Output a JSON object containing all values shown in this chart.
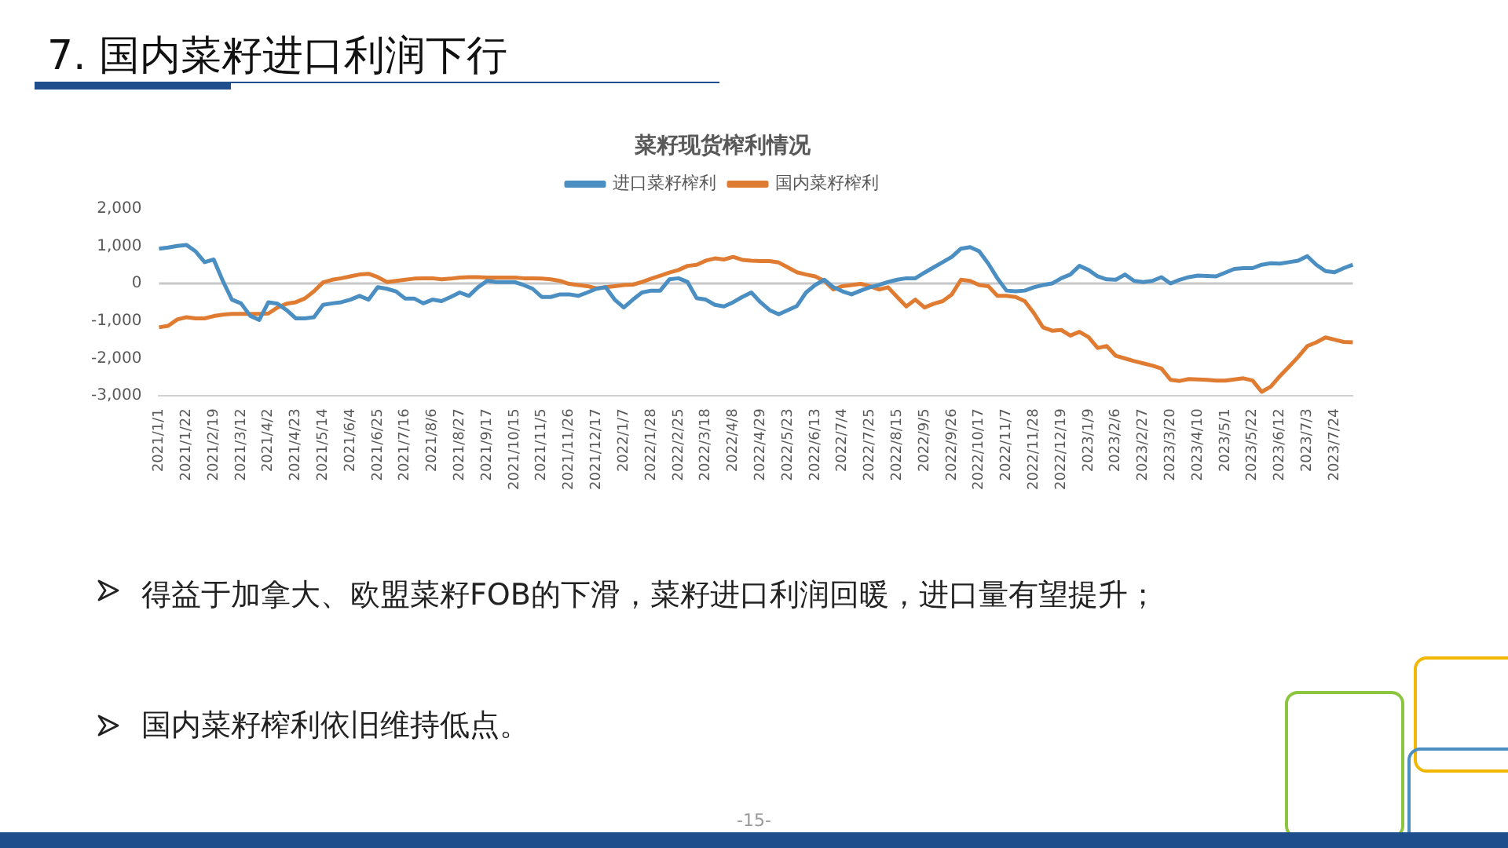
{
  "chart_data": {
    "type": "line",
    "title": "7. 国内菜籽进口利润下行",
    "subtitle": "菜籽现货榨利情况",
    "categories": [
      "2021/1/1",
      null,
      null,
      "2021/1/22",
      null,
      null,
      "2021/2/19",
      null,
      null,
      "2021/3/12",
      null,
      null,
      "2021/4/2",
      null,
      null,
      "2021/4/23",
      null,
      null,
      "2021/5/14",
      null,
      null,
      "2021/6/4",
      null,
      null,
      "2021/6/25",
      null,
      null,
      "2021/7/16",
      null,
      null,
      "2021/8/6",
      null,
      null,
      "2021/8/27",
      null,
      null,
      "2021/9/17",
      null,
      null,
      "2021/10/15",
      null,
      null,
      "2021/11/5",
      null,
      null,
      "2021/11/26",
      null,
      null,
      "2021/12/17",
      null,
      null,
      "2022/1/7",
      null,
      null,
      "2022/1/28",
      null,
      null,
      "2022/2/25",
      null,
      null,
      "2022/3/18",
      null,
      null,
      "2022/4/8",
      null,
      null,
      "2022/4/29",
      null,
      null,
      "2022/5/23",
      null,
      null,
      "2022/6/13",
      null,
      null,
      "2022/7/4",
      null,
      null,
      "2022/7/25",
      null,
      null,
      "2022/8/15",
      null,
      null,
      "2022/9/5",
      null,
      null,
      "2022/9/26",
      null,
      null,
      "2022/10/17",
      null,
      null,
      "2022/11/7",
      null,
      null,
      "2022/11/28",
      null,
      null,
      "2022/12/19",
      null,
      null,
      "2023/1/9",
      null,
      null,
      "2023/2/6",
      null,
      null,
      "2023/2/27",
      null,
      null,
      "2023/3/20",
      null,
      null,
      "2023/4/10",
      null,
      null,
      "2023/5/1",
      null,
      null,
      "2023/5/22",
      null,
      null,
      "2023/6/12",
      null,
      null,
      "2023/7/3",
      null,
      null,
      "2023/7/24",
      null,
      null
    ],
    "series": [
      {
        "name": "进口菜籽榨利",
        "color": "#4a8ec2",
        "values": [
          930,
          960,
          1000,
          1030,
          860,
          570,
          640,
          70,
          -430,
          -530,
          -860,
          -970,
          -500,
          -540,
          -710,
          -930,
          -930,
          -900,
          -570,
          -530,
          -500,
          -430,
          -330,
          -430,
          -100,
          -140,
          -210,
          -400,
          -400,
          -530,
          -430,
          -470,
          -360,
          -240,
          -330,
          -100,
          70,
          40,
          40,
          40,
          -40,
          -140,
          -360,
          -360,
          -290,
          -290,
          -330,
          -240,
          -140,
          -100,
          -430,
          -640,
          -430,
          -240,
          -190,
          -190,
          110,
          140,
          40,
          -390,
          -430,
          -570,
          -610,
          -500,
          -360,
          -240,
          -500,
          -710,
          -820,
          -710,
          -600,
          -240,
          -40,
          100,
          -100,
          -210,
          -290,
          -190,
          -100,
          -40,
          40,
          100,
          140,
          140,
          290,
          430,
          570,
          710,
          930,
          970,
          860,
          530,
          140,
          -190,
          -210,
          -190,
          -100,
          -40,
          0,
          140,
          240,
          470,
          360,
          190,
          110,
          100,
          240,
          70,
          40,
          70,
          170,
          0,
          100,
          170,
          210,
          200,
          190,
          290,
          390,
          410,
          410,
          500,
          540,
          530,
          570,
          610,
          730,
          500,
          330,
          300,
          410,
          500
        ]
      },
      {
        "name": "国内菜籽榨利",
        "color": "#e07b32",
        "values": [
          -1170,
          -1130,
          -960,
          -900,
          -930,
          -930,
          -870,
          -830,
          -810,
          -810,
          -810,
          -810,
          -800,
          -640,
          -540,
          -500,
          -400,
          -210,
          30,
          100,
          140,
          190,
          240,
          260,
          170,
          40,
          70,
          100,
          130,
          140,
          140,
          110,
          130,
          160,
          170,
          170,
          160,
          160,
          160,
          160,
          140,
          140,
          130,
          110,
          70,
          -10,
          -40,
          -70,
          -130,
          -100,
          -70,
          -40,
          -30,
          40,
          130,
          210,
          290,
          360,
          470,
          500,
          610,
          670,
          640,
          710,
          630,
          610,
          600,
          600,
          560,
          430,
          300,
          240,
          190,
          70,
          -160,
          -70,
          -40,
          -10,
          -70,
          -160,
          -100,
          -360,
          -610,
          -430,
          -640,
          -540,
          -470,
          -290,
          100,
          70,
          -40,
          -70,
          -330,
          -330,
          -360,
          -470,
          -790,
          -1170,
          -1260,
          -1240,
          -1390,
          -1290,
          -1430,
          -1720,
          -1670,
          -1930,
          -2000,
          -2070,
          -2130,
          -2190,
          -2270,
          -2570,
          -2600,
          -2550,
          -2560,
          -2570,
          -2590,
          -2590,
          -2560,
          -2530,
          -2590,
          -2890,
          -2750,
          -2470,
          -2220,
          -1960,
          -1670,
          -1570,
          -1440,
          -1500,
          -1560,
          -1570
        ]
      }
    ],
    "ylim": [
      -3000,
      2000
    ],
    "yticks": [
      {
        "value": 2000,
        "label": "2,000"
      },
      {
        "value": 1000,
        "label": "1,000"
      },
      0,
      {
        "value": -1000,
        "label": "-1,000"
      },
      {
        "value": -2000,
        "label": "-2,000"
      },
      {
        "value": -3000,
        "label": "-3,000"
      }
    ],
    "ref_lines": [
      {
        "axis": "y",
        "value": 0,
        "color": "#c8c8c8"
      }
    ],
    "grid": false,
    "legend": "top",
    "marker": "none",
    "line_style": "solid",
    "annotations": [
      "得益于加拿大、欧盟菜籽FOB的下滑，菜籽进口利润回暖，进口量有望提升；",
      "国内菜籽榨利依旧维持低点。",
      "-15-"
    ]
  }
}
